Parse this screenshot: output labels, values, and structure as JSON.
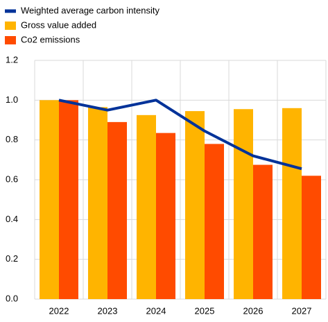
{
  "chart_data": {
    "type": "bar",
    "categories": [
      "2022",
      "2023",
      "2024",
      "2025",
      "2026",
      "2027"
    ],
    "series": [
      {
        "name": "Weighted average carbon intensity",
        "type": "line",
        "color": "#003299",
        "values": [
          1.0,
          0.95,
          1.0,
          0.845,
          0.72,
          0.655
        ]
      },
      {
        "name": "Gross value added",
        "type": "bar",
        "color": "#ffb400",
        "values": [
          1.0,
          0.965,
          0.925,
          0.945,
          0.955,
          0.96
        ]
      },
      {
        "name": "Co2 emissions",
        "type": "bar",
        "color": "#ff4b00",
        "values": [
          1.0,
          0.89,
          0.835,
          0.78,
          0.675,
          0.62
        ]
      }
    ],
    "ylim": [
      0,
      1.2
    ],
    "yticks": [
      {
        "value": 0,
        "label": "0.0"
      },
      0.2,
      0.4,
      0.6,
      0.8,
      {
        "value": 1,
        "label": "1.0"
      },
      1.2
    ],
    "grid": true,
    "legend": "top-left"
  }
}
